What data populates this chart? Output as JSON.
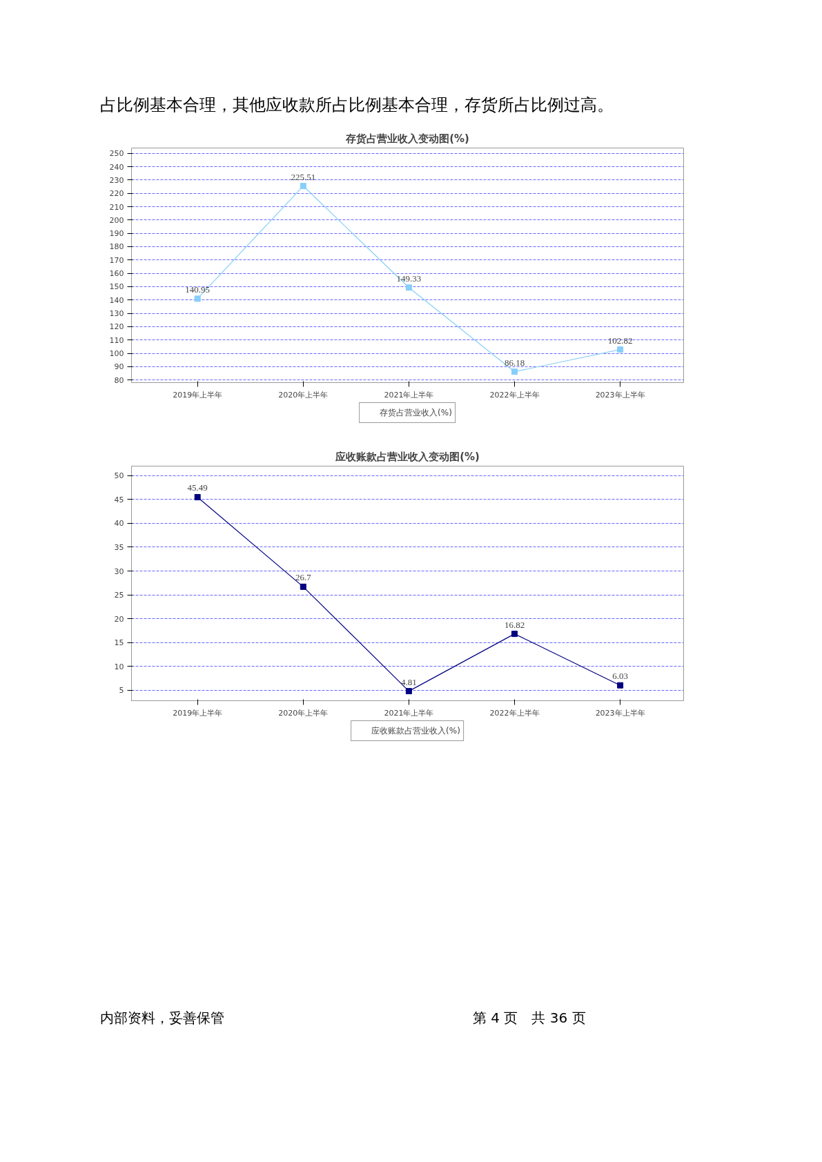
{
  "chart_data": [
    {
      "type": "line",
      "title": "存货占营业收入变动图(%)",
      "annotations": [
        "占比例基本合理，其他应收款所占比例基本合理，存货所占比例过高。"
      ],
      "categories": [
        "2019年上半年",
        "2020年上半年",
        "2021年上半年",
        "2022年上半年",
        "2023年上半年"
      ],
      "series": [
        {
          "name": "存货占营业收入(%)",
          "color": "#87cefa",
          "values": [
            140.95,
            225.51,
            149.33,
            86.18,
            102.82
          ]
        }
      ],
      "ylim": [
        78,
        254
      ],
      "yticks": [
        80,
        90,
        100,
        110,
        120,
        130,
        140,
        150,
        160,
        170,
        180,
        190,
        200,
        210,
        220,
        230,
        240,
        250
      ],
      "grid": "y",
      "legend": "bottom",
      "marker": "square",
      "line_style": "solid",
      "data_labels": true
    },
    {
      "type": "line",
      "title": "应收账款占营业收入变动图(%)",
      "annotations": [
        "内部资料，妥善保管",
        "第 4 页　共 36 页"
      ],
      "categories": [
        "2019年上半年",
        "2020年上半年",
        "2021年上半年",
        "2022年上半年",
        "2023年上半年"
      ],
      "series": [
        {
          "name": "应收账款占营业收入(%)",
          "color": "#000080",
          "values": [
            45.49,
            26.7,
            4.81,
            16.82,
            6.03
          ]
        }
      ],
      "ylim": [
        2.8,
        52
      ],
      "yticks": [
        5,
        10,
        15,
        20,
        25,
        30,
        35,
        40,
        45,
        50
      ],
      "grid": "y",
      "legend": "bottom",
      "marker": "square",
      "line_style": "solid",
      "data_labels": true
    }
  ]
}
